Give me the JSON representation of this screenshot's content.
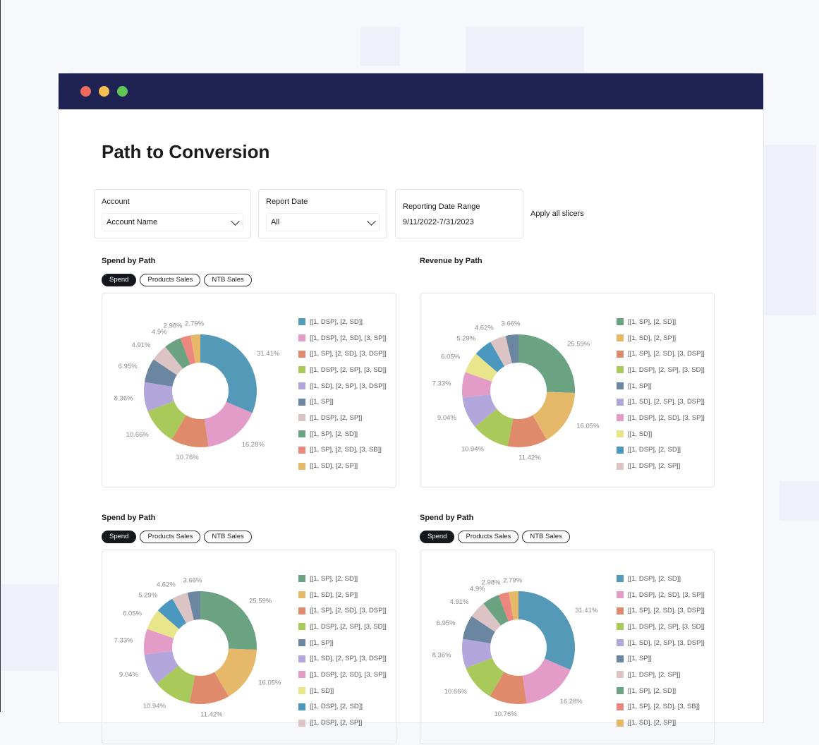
{
  "window": {
    "title": "Path to Conversion",
    "dots": [
      "#ec6a5e",
      "#f4bf4f",
      "#61c554"
    ],
    "titlebar_color": "#1f2353"
  },
  "slicers": {
    "account": {
      "label": "Account",
      "value": "Account Name"
    },
    "report_date": {
      "label": "Report Date",
      "value": "All"
    },
    "date_range": {
      "label": "Reporting Date Range",
      "value": "9/11/2022-7/31/2023"
    },
    "apply_label": "Apply all slicers"
  },
  "toggles": [
    "Spend",
    "Products Sales",
    "NTB Sales"
  ],
  "charts": [
    {
      "title": "Spend by Path",
      "show_toggles": true,
      "active_toggle": "Spend",
      "chart_data": {
        "type": "pie",
        "donut": true,
        "legend": [
          "[[1, DSP], [2, SD]]",
          "[[1, DSP], [2, SD], [3, SP]]",
          "[[1, SP], [2, SD], [3, DSP]]",
          "[[1, DSP], [2, SP], [3, SD]]",
          "[[1, SD], [2, SP], [3, DSP]]",
          "[[1, SP]]",
          "[[1, DSP], [2, SP]]",
          "[[1, SP], [2, SD]]",
          "[[1, SP], [2, SD], [3, SB]]",
          "[[1, SD], [2, SP]]"
        ],
        "colors": [
          "#5499b8",
          "#e39bc8",
          "#e08a6c",
          "#a9c95a",
          "#b3a6dc",
          "#6b86a0",
          "#dcc3c4",
          "#6aa282",
          "#ee8680",
          "#e6b86a"
        ],
        "values": [
          31.41,
          16.28,
          10.76,
          10.66,
          8.36,
          6.95,
          4.91,
          4.9,
          2.98,
          2.79
        ],
        "labels": [
          "31.41%",
          "16.28%",
          "10.76%",
          "10.66%",
          "8.36%",
          "6.95%",
          "4.91%",
          "4.9%",
          "2.98%",
          "2.79%"
        ]
      }
    },
    {
      "title": "Revenue by Path",
      "show_toggles": false,
      "chart_data": {
        "type": "pie",
        "donut": true,
        "legend": [
          "[[1, SP], [2, SD]]",
          "[[1, SD], [2, SP]]",
          "[[1, SP], [2, SD], [3, DSP]]",
          "[[1, DSP], [2, SP], [3, SD]]",
          "[[1, SP]]",
          "[[1, SD], [2, SP], [3, DSP]]",
          "[[1, DSP], [2, SD], [3, SP]]",
          "[[1, SD]]",
          "[[1, DSP], [2, SD]]",
          "[[1, DSP], [2, SP]]"
        ],
        "colors": [
          "#6aa282",
          "#e6b86a",
          "#e08a6c",
          "#a9c95a",
          "#6b86a0",
          "#b3a6dc",
          "#e39bc8",
          "#e8e58a",
          "#4a98c0",
          "#dcc3c4"
        ],
        "slice_order": [
          0,
          1,
          2,
          3,
          5,
          6,
          7,
          8,
          9,
          4
        ],
        "values": [
          25.59,
          16.05,
          11.42,
          10.94,
          9.04,
          7.33,
          6.05,
          5.29,
          4.62,
          3.66
        ],
        "labels": [
          "25.59%",
          "16.05%",
          "11.42%",
          "10.94%",
          "9.04%",
          "7.33%",
          "6.05%",
          "5.29%",
          "4.62%",
          "3.66%"
        ]
      }
    },
    {
      "title": "Spend by Path",
      "show_toggles": true,
      "active_toggle": "Spend",
      "chart_data": {
        "type": "pie",
        "donut": true,
        "legend": [
          "[[1, SP], [2, SD]]",
          "[[1, SD], [2, SP]]",
          "[[1, SP], [2, SD], [3, DSP]]",
          "[[1, DSP], [2, SP], [3, SD]]",
          "[[1, SP]]",
          "[[1, SD], [2, SP], [3, DSP]]",
          "[[1, DSP], [2, SD], [3, SP]]",
          "[[1, SD]]",
          "[[1, DSP], [2, SD]]",
          "[[1, DSP], [2, SP]]"
        ],
        "colors": [
          "#6aa282",
          "#e6b86a",
          "#e08a6c",
          "#a9c95a",
          "#6b86a0",
          "#b3a6dc",
          "#e39bc8",
          "#e8e58a",
          "#4a98c0",
          "#dcc3c4"
        ],
        "slice_order": [
          0,
          1,
          2,
          3,
          5,
          6,
          7,
          8,
          9,
          4
        ],
        "values": [
          25.59,
          16.05,
          11.42,
          10.94,
          9.04,
          7.33,
          6.05,
          5.29,
          4.62,
          3.66
        ],
        "labels": [
          "25.59%",
          "16.05%",
          "11.42%",
          "10.94%",
          "9.04%",
          "7.33%",
          "6.05%",
          "5.29%",
          "4.62%",
          "3.66%"
        ]
      }
    },
    {
      "title": "Spend by Path",
      "show_toggles": true,
      "active_toggle": "Spend",
      "chart_data": {
        "type": "pie",
        "donut": true,
        "legend": [
          "[[1, DSP], [2, SD]]",
          "[[1, DSP], [2, SD], [3, SP]]",
          "[[1, SP], [2, SD], [3, DSP]]",
          "[[1, DSP], [2, SP], [3, SD]]",
          "[[1, SD], [2, SP], [3, DSP]]",
          "[[1, SP]]",
          "[[1, DSP], [2, SP]]",
          "[[1, SP], [2, SD]]",
          "[[1, SP], [2, SD], [3, SB]]",
          "[[1, SD], [2, SP]]"
        ],
        "colors": [
          "#5499b8",
          "#e39bc8",
          "#e08a6c",
          "#a9c95a",
          "#b3a6dc",
          "#6b86a0",
          "#dcc3c4",
          "#6aa282",
          "#ee8680",
          "#e6b86a"
        ],
        "values": [
          31.41,
          16.28,
          10.76,
          10.66,
          8.36,
          6.95,
          4.91,
          4.9,
          2.98,
          2.79
        ],
        "labels": [
          "31.41%",
          "16.28%",
          "10.76%",
          "10.66%",
          "8.36%",
          "6.95%",
          "4.91%",
          "4.9%",
          "2.98%",
          "2.79%"
        ]
      }
    }
  ]
}
